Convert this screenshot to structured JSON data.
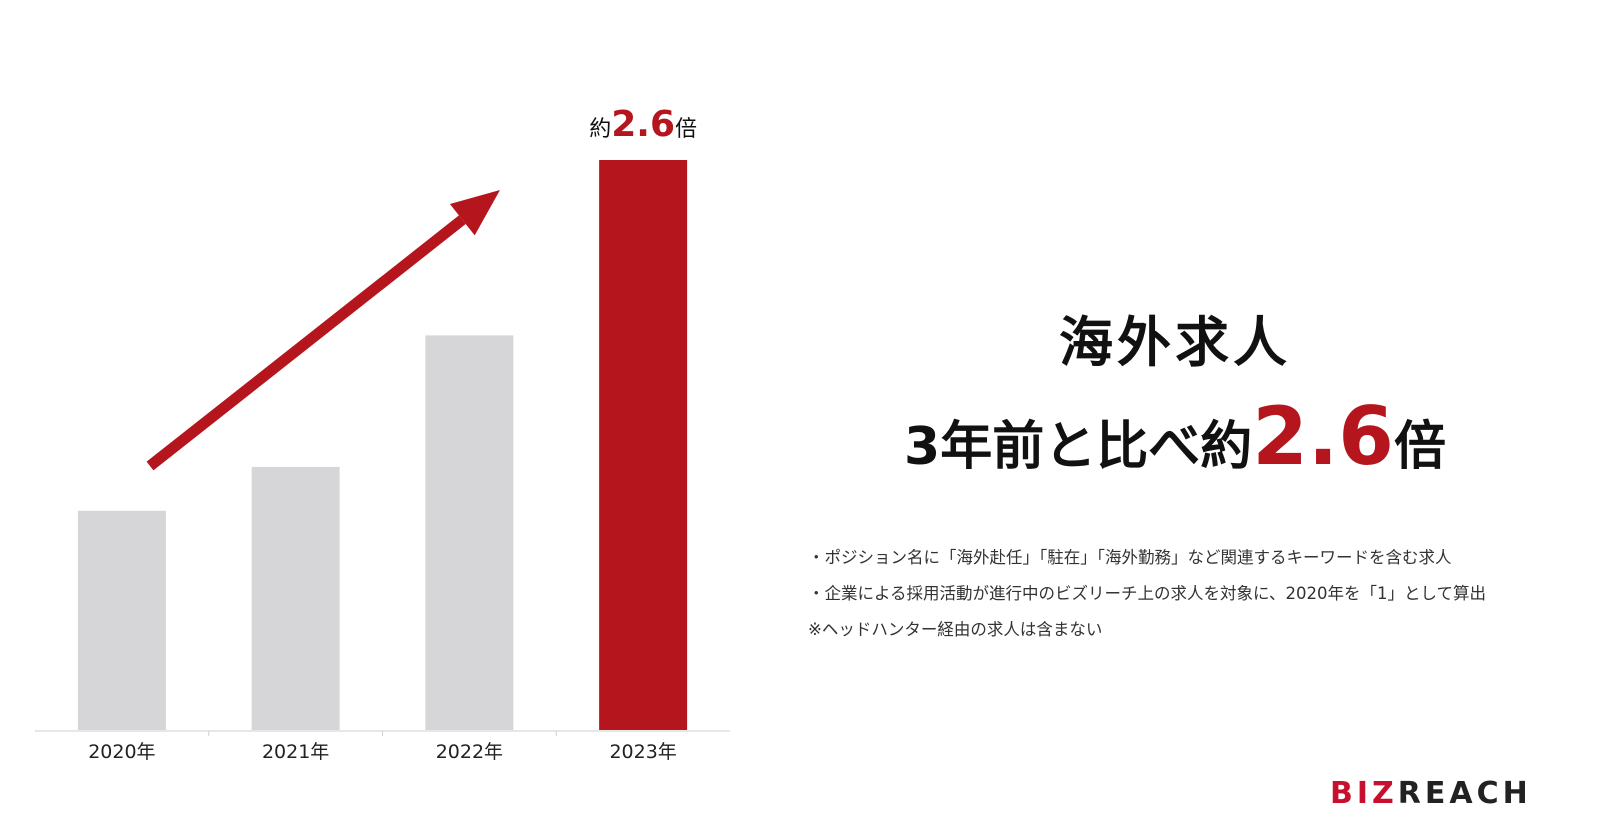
{
  "headline": {
    "line1": "海外求人",
    "line2_prefix": "3年前と比べ約",
    "line2_value": "2.6",
    "line2_suffix": "倍"
  },
  "notes": [
    "・ポジション名に「海外赴任」「駐在」「海外勤務」など関連するキーワードを含む求人",
    "・企業による採用活動が進行中のビズリーチ上の求人を対象に、2020年を「1」として算出",
    "※ヘッドハンター経由の求人は含まない"
  ],
  "logo": {
    "red_part": "BIZ",
    "dark_part": "REACH"
  },
  "colors": {
    "accent": "#b5151d",
    "bar_gray": "#d6d6d8",
    "text": "#111111"
  },
  "chart_data": {
    "type": "bar",
    "categories": [
      "2020年",
      "2021年",
      "2022年",
      "2023年"
    ],
    "values": [
      1.0,
      1.2,
      1.8,
      2.6
    ],
    "highlight_index": 3,
    "highlight_label": {
      "prefix": "約",
      "value": "2.6",
      "suffix": "倍"
    },
    "trend_arrow": true,
    "ylim": [
      0,
      2.6
    ],
    "grid": false,
    "title": "",
    "xlabel": "",
    "ylabel": ""
  }
}
